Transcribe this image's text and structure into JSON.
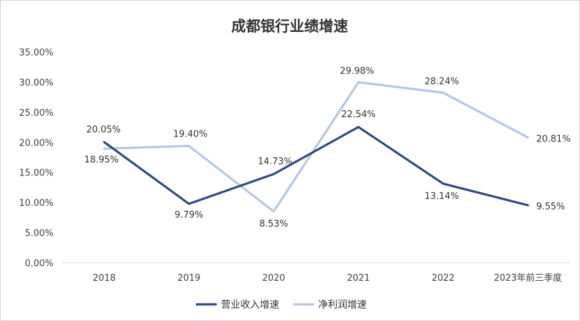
{
  "chart_data": {
    "type": "line",
    "title": "成都银行业绩增速",
    "categories": [
      "2018",
      "2019",
      "2020",
      "2021",
      "2022",
      "2023年前三季度"
    ],
    "ylim": [
      0,
      35
    ],
    "yticks": [
      "0.00%",
      "5.00%",
      "10.00%",
      "15.00%",
      "20.00%",
      "25.00%",
      "30.00%",
      "35.00%"
    ],
    "grid": false,
    "legend": "bottom",
    "series": [
      {
        "name": "营业收入增速",
        "color": "#2f4a82",
        "values": [
          20.05,
          9.79,
          14.73,
          22.54,
          13.14,
          9.55
        ],
        "labels": [
          "20.05%",
          "9.79%",
          "14.73%",
          "22.54%",
          "13.14%",
          "9.55%"
        ]
      },
      {
        "name": "净利润增速",
        "color": "#b4c7e7",
        "values": [
          18.95,
          19.4,
          8.53,
          29.98,
          28.24,
          20.81
        ],
        "labels": [
          "18.95%",
          "19.40%",
          "8.53%",
          "29.98%",
          "28.24%",
          "20.81%"
        ]
      }
    ]
  }
}
